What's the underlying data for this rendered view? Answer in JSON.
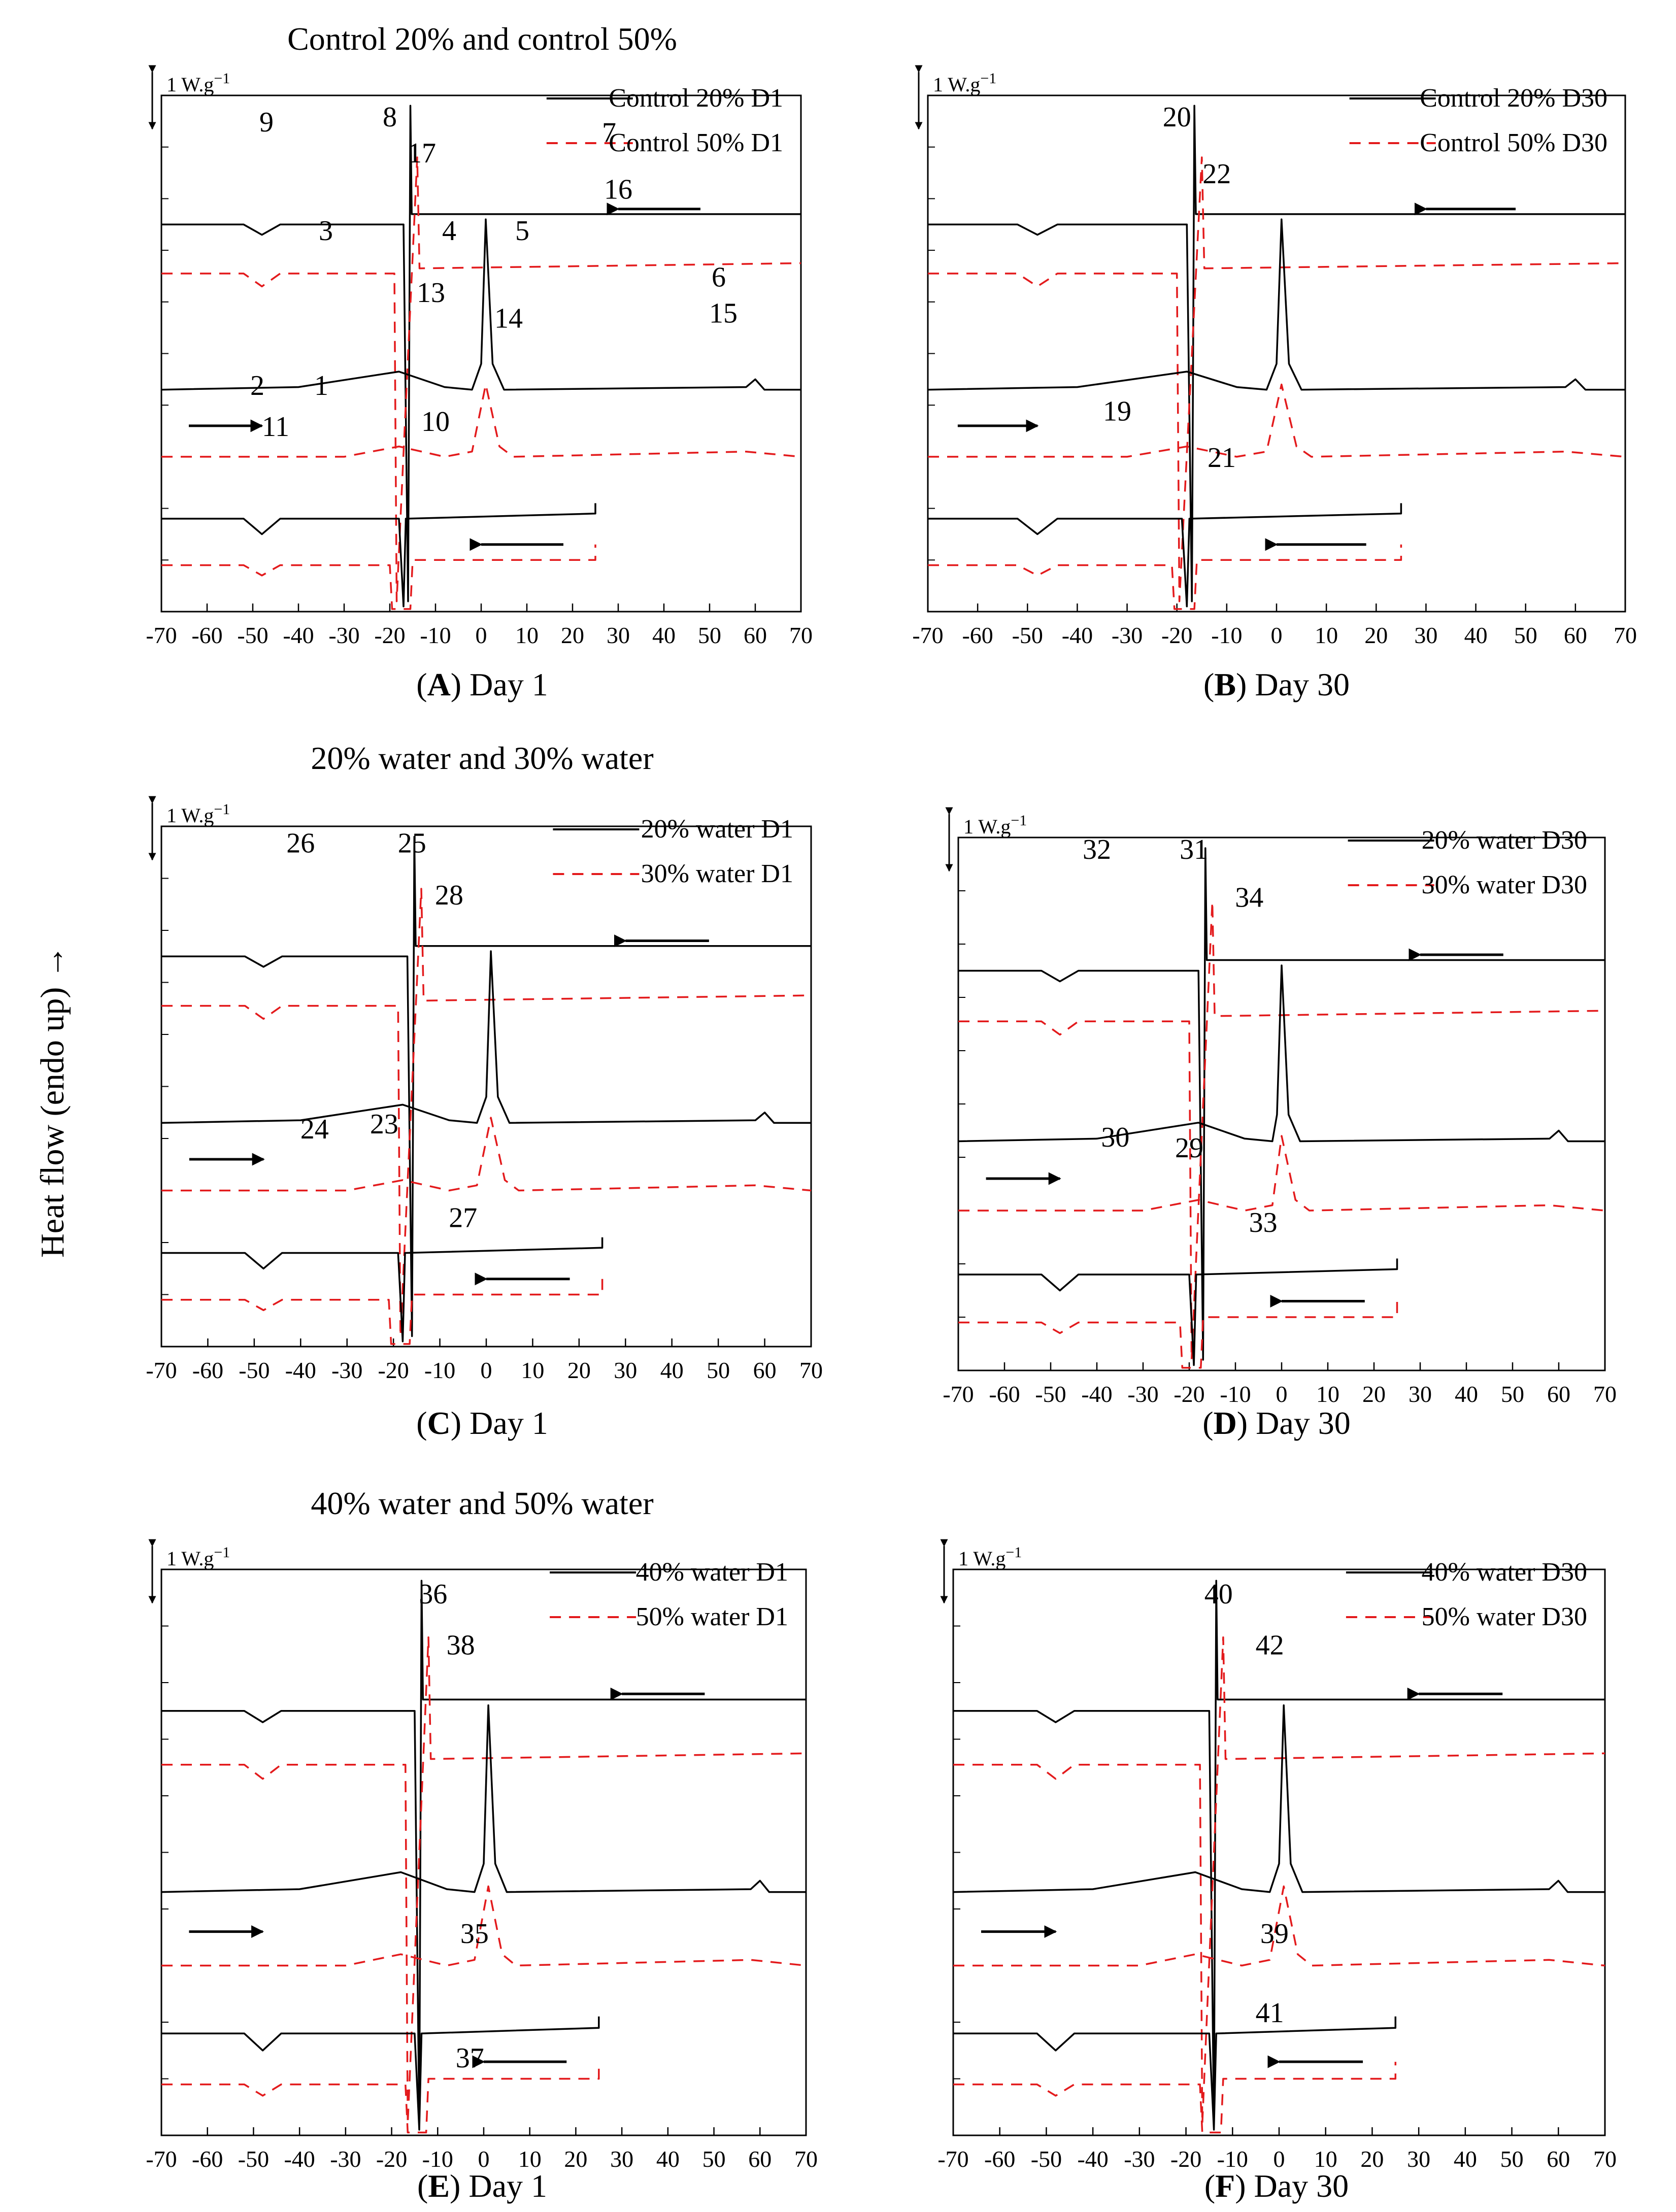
{
  "figure": {
    "y_axis_label": "Heat flow (endo up) →",
    "scale_bar_label": "1 W.g",
    "scale_bar_exponent": "−1",
    "group_titles": [
      "Control 20% and control 50%",
      "20% water and 30% water",
      "40% water and 50% water"
    ],
    "colors": {
      "solid": "#000000",
      "dashed": "#e31a1c"
    }
  },
  "chart_data": [
    {
      "type": "line",
      "panel": "A",
      "caption_letter": "A",
      "caption_text": " Day 1",
      "x_range": [
        -70,
        70
      ],
      "x_ticks": [
        -70,
        -60,
        -50,
        -40,
        -30,
        -20,
        -10,
        0,
        10,
        20,
        30,
        40,
        50,
        60,
        70
      ],
      "legend": [
        {
          "name": "Control 20% D1",
          "style": "solid"
        },
        {
          "name": "Control 50% D1",
          "style": "dashed"
        }
      ],
      "peak_labels": [
        "9",
        "8",
        "7",
        "17",
        "16",
        "3",
        "4",
        "5",
        "6",
        "13",
        "14",
        "15",
        "2",
        "1",
        "11",
        "10"
      ],
      "events": {
        "cool1": -16,
        "heat_peak": 1,
        "cool2": -17
      }
    },
    {
      "type": "line",
      "panel": "B",
      "caption_letter": "B",
      "caption_text": " Day 30",
      "x_range": [
        -70,
        70
      ],
      "x_ticks": [
        -70,
        -60,
        -50,
        -40,
        -30,
        -20,
        -10,
        0,
        10,
        20,
        30,
        40,
        50,
        60,
        70
      ],
      "legend": [
        {
          "name": "Control 20% D30",
          "style": "solid"
        },
        {
          "name": "Control 50% D30",
          "style": "dashed"
        }
      ],
      "peak_labels": [
        "20",
        "22",
        "19",
        "21"
      ],
      "events": {
        "cool1": -17,
        "heat_peak": 1,
        "cool2": -18
      }
    },
    {
      "type": "line",
      "panel": "C",
      "caption_letter": "C",
      "caption_text": " Day 1",
      "x_range": [
        -70,
        70
      ],
      "x_ticks": [
        -70,
        -60,
        -50,
        -40,
        -30,
        -20,
        -10,
        0,
        10,
        20,
        30,
        40,
        50,
        60,
        70
      ],
      "legend": [
        {
          "name": "20% water D1",
          "style": "solid"
        },
        {
          "name": "30% water D1",
          "style": "dashed"
        }
      ],
      "peak_labels": [
        "26",
        "25",
        "28",
        "24",
        "23",
        "27"
      ],
      "events": {
        "cool1": -16,
        "heat_peak": 1,
        "cool2": -18
      }
    },
    {
      "type": "line",
      "panel": "D",
      "caption_letter": "D",
      "caption_text": " Day 30",
      "x_range": [
        -70,
        70
      ],
      "x_ticks": [
        -70,
        -60,
        -50,
        -40,
        -30,
        -20,
        -10,
        0,
        10,
        20,
        30,
        40,
        50,
        60,
        70
      ],
      "legend": [
        {
          "name": "20% water D30",
          "style": "solid"
        },
        {
          "name": "30% water D30",
          "style": "dashed"
        }
      ],
      "peak_labels": [
        "32",
        "31",
        "34",
        "30",
        "29",
        "33"
      ],
      "events": {
        "cool1": -17,
        "heat_peak": 0,
        "cool2": -19
      }
    },
    {
      "type": "line",
      "panel": "E",
      "caption_letter": "E",
      "caption_text": " Day 1",
      "x_range": [
        -70,
        70
      ],
      "x_ticks": [
        -70,
        -60,
        -50,
        -40,
        -30,
        -20,
        -10,
        0,
        10,
        20,
        30,
        40,
        50,
        60,
        70
      ],
      "legend": [
        {
          "name": "40% water D1",
          "style": "solid"
        },
        {
          "name": "50% water D1",
          "style": "dashed"
        }
      ],
      "peak_labels": [
        "36",
        "38",
        "35",
        "37"
      ],
      "events": {
        "cool1": -14,
        "heat_peak": 1,
        "cool2": -14
      }
    },
    {
      "type": "line",
      "panel": "F",
      "caption_letter": "F",
      "caption_text": " Day 30",
      "x_range": [
        -70,
        70
      ],
      "x_ticks": [
        -70,
        -60,
        -50,
        -40,
        -30,
        -20,
        -10,
        0,
        10,
        20,
        30,
        40,
        50,
        60,
        70
      ],
      "legend": [
        {
          "name": "40% water D30",
          "style": "solid"
        },
        {
          "name": "50% water D30",
          "style": "dashed"
        }
      ],
      "peak_labels": [
        "40",
        "42",
        "39",
        "41"
      ],
      "events": {
        "cool1": -14,
        "heat_peak": 1,
        "cool2": -14
      }
    }
  ]
}
